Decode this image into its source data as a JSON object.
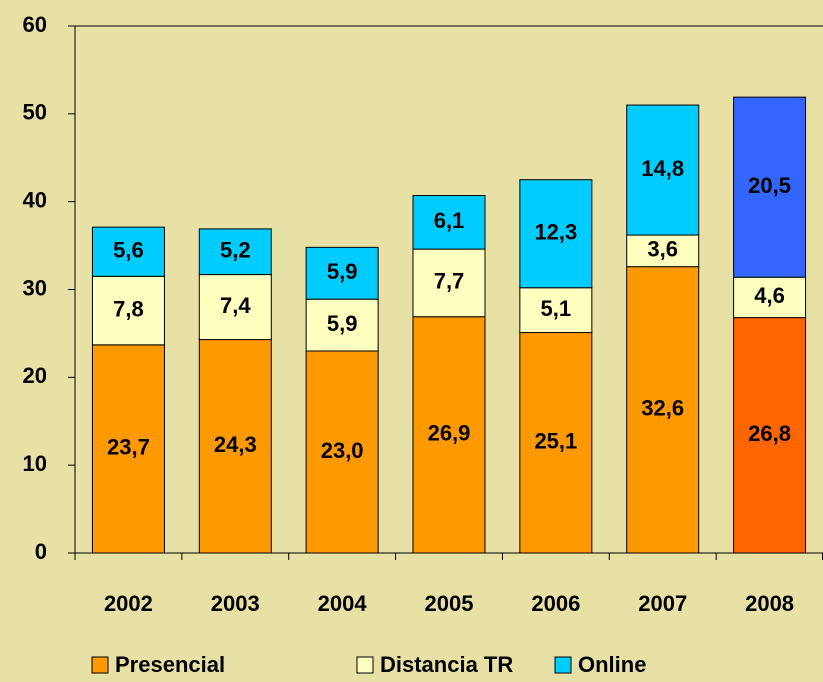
{
  "chart_data": {
    "type": "stacked_bar",
    "categories": [
      "2002",
      "2003",
      "2004",
      "2005",
      "2006",
      "2007",
      "2008"
    ],
    "series": [
      {
        "name": "Presencial",
        "color": "#ff9900",
        "colors": [
          "#ff9900",
          "#ff9900",
          "#ff9900",
          "#ff9900",
          "#ff9900",
          "#ff9900",
          "#ff6600"
        ],
        "values": [
          23.7,
          24.3,
          23.0,
          26.9,
          25.1,
          32.6,
          26.8
        ],
        "value_labels": [
          "23,7",
          "24,3",
          "23,0",
          "26,9",
          "25,1",
          "32,6",
          "26,8"
        ]
      },
      {
        "name": "Distancia TR",
        "color": "#ffffc0",
        "colors": [
          "#ffffc0",
          "#ffffc0",
          "#ffffc0",
          "#ffffc0",
          "#ffffc0",
          "#ffffc0",
          "#ffffc0"
        ],
        "values": [
          7.8,
          7.4,
          5.9,
          7.7,
          5.1,
          3.6,
          4.6
        ],
        "value_labels": [
          "7,8",
          "7,4",
          "5,9",
          "7,7",
          "5,1",
          "3,6",
          "4,6"
        ]
      },
      {
        "name": "Online",
        "color": "#00ccff",
        "colors": [
          "#00ccff",
          "#00ccff",
          "#00ccff",
          "#00ccff",
          "#00ccff",
          "#00ccff",
          "#3366ff"
        ],
        "values": [
          5.6,
          5.2,
          5.9,
          6.1,
          12.3,
          14.8,
          20.5
        ],
        "value_labels": [
          "5,6",
          "5,2",
          "5,9",
          "6,1",
          "12,3",
          "14,8",
          "20,5"
        ]
      }
    ],
    "ylim": [
      0,
      60
    ],
    "yticks": [
      0,
      10,
      20,
      30,
      40,
      50,
      60
    ],
    "legend": "bottom"
  }
}
